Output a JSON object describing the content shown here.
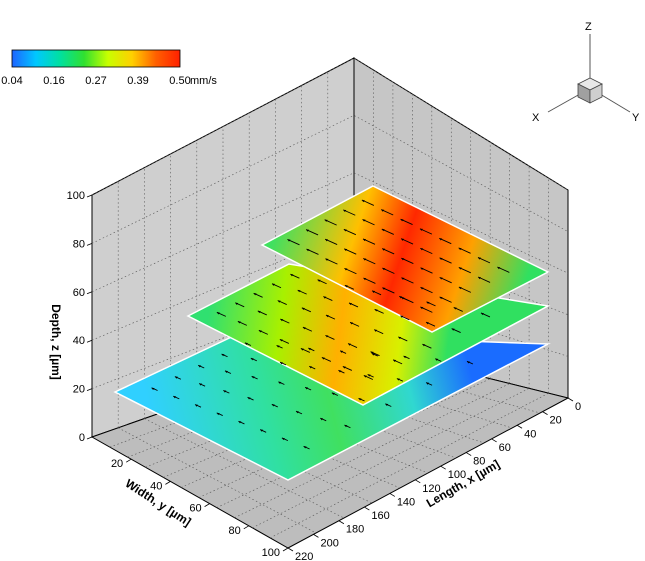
{
  "chart_data": {
    "type": "3d-surface-slices",
    "title": "",
    "colorbar": {
      "ticks": [
        "0.04",
        "0.16",
        "0.27",
        "0.39",
        "0.50"
      ],
      "unit": "mm/s",
      "min": 0.04,
      "max": 0.5,
      "colors": [
        "#1e64ff",
        "#00c8ff",
        "#00e0a0",
        "#30e030",
        "#c8ff00",
        "#ffd000",
        "#ff6000",
        "#ff2000"
      ]
    },
    "axes": {
      "x": {
        "label": "Length, x [µm]",
        "range": [
          0,
          220
        ],
        "ticks": [
          "0",
          "20",
          "40",
          "60",
          "80",
          "100",
          "120",
          "140",
          "160",
          "180",
          "200",
          "220"
        ]
      },
      "y": {
        "label": "Width, y [µm]",
        "range": [
          0,
          100
        ],
        "ticks": [
          "20",
          "40",
          "60",
          "80",
          "100"
        ]
      },
      "z": {
        "label": "Depth, z [µm]",
        "range": [
          0,
          100
        ],
        "ticks": [
          "0",
          "20",
          "40",
          "60",
          "80",
          "100"
        ]
      }
    },
    "orientation_triad": {
      "x": "X",
      "y": "Y",
      "z": "Z"
    },
    "slices": [
      {
        "name": "",
        "z": 20,
        "x_range": [
          0,
          220
        ],
        "y_range": [
          0,
          100
        ],
        "peak_velocity": 0.24
      },
      {
        "name": "",
        "z": 50,
        "x_range": [
          0,
          220
        ],
        "y_range": [
          40,
          100
        ],
        "peak_velocity": 0.4
      },
      {
        "name": "",
        "z": 75,
        "x_range": [
          0,
          160
        ],
        "y_range": [
          60,
          100
        ],
        "peak_velocity": 0.5
      }
    ],
    "grid": true,
    "vectors": true
  }
}
